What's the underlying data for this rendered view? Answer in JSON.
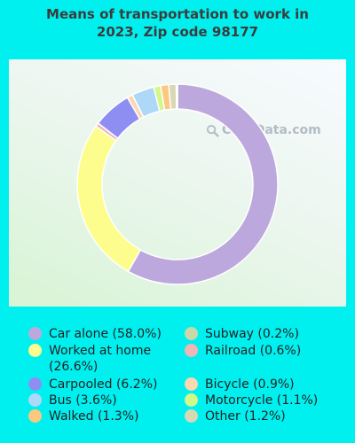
{
  "chart_data": {
    "type": "pie",
    "style": "donut",
    "title_lines": [
      "Means of transportation to work in",
      "2023, Zip code 98177"
    ],
    "watermark": "City-Data.com",
    "slices": [
      {
        "label": "Car alone",
        "value": 58.0,
        "display": "Car alone (58.0%)",
        "color": "#bca8dc"
      },
      {
        "label": "Worked at home",
        "value": 26.6,
        "display": "Worked at home (26.6%)",
        "color": "#fdfd8d"
      },
      {
        "label": "Railroad",
        "value": 0.6,
        "display": "Railroad (0.6%)",
        "color": "#f0b5b5"
      },
      {
        "label": "Carpooled",
        "value": 6.2,
        "display": "Carpooled (6.2%)",
        "color": "#8e8ef2"
      },
      {
        "label": "Bicycle",
        "value": 0.9,
        "display": "Bicycle (0.9%)",
        "color": "#fcd8b0"
      },
      {
        "label": "Bus",
        "value": 3.6,
        "display": "Bus (3.6%)",
        "color": "#add8f8"
      },
      {
        "label": "Motorcycle",
        "value": 1.1,
        "display": "Motorcycle (1.1%)",
        "color": "#d2f78a"
      },
      {
        "label": "Walked",
        "value": 1.3,
        "display": "Walked (1.3%)",
        "color": "#fcc880"
      },
      {
        "label": "Other",
        "value": 1.2,
        "display": "Other (1.2%)",
        "color": "#d8d8b4"
      },
      {
        "label": "Subway",
        "value": 0.2,
        "display": "Subway (0.2%)",
        "color": "#c8d8a8"
      }
    ],
    "legend": {
      "placement": "bottom",
      "left": [
        {
          "text": "Car alone (58.0%)",
          "color": "#bca8dc"
        },
        {
          "text": "Worked at home (26.6%)",
          "color": "#fdfd8d"
        },
        {
          "text": "Carpooled (6.2%)",
          "color": "#8e8ef2"
        },
        {
          "text": "Bus (3.6%)",
          "color": "#add8f8"
        },
        {
          "text": "Walked (1.3%)",
          "color": "#fcc880"
        }
      ],
      "right": [
        {
          "text": "Subway (0.2%)",
          "color": "#c8d8a8"
        },
        {
          "text": "Railroad (0.6%)",
          "color": "#f0b5b5"
        },
        {
          "text": "Bicycle (0.9%)",
          "color": "#fcd8b0"
        },
        {
          "text": "Motorcycle (1.1%)",
          "color": "#d2f78a"
        },
        {
          "text": "Other (1.2%)",
          "color": "#d8d8b4"
        }
      ]
    }
  },
  "colors": {
    "background": "#00f0f0",
    "title": "#3c3c3c"
  }
}
